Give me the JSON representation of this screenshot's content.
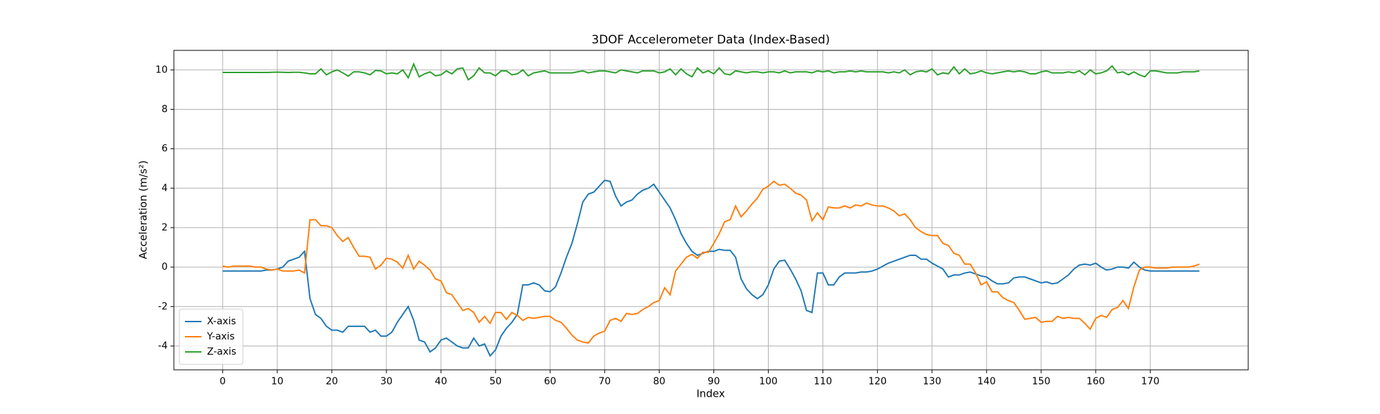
{
  "chart_data": {
    "type": "line",
    "title": "3DOF Accelerometer Data (Index-Based)",
    "x_label": "Index",
    "y_label": "Acceleration (m/s²)",
    "xlim": [
      -8.95,
      187.95
    ],
    "ylim": [
      -5.21,
      10.99
    ],
    "xticks": [
      0,
      10,
      20,
      30,
      40,
      50,
      60,
      70,
      80,
      90,
      100,
      110,
      120,
      130,
      140,
      150,
      160,
      170
    ],
    "yticks": [
      -4,
      -2,
      0,
      2,
      4,
      6,
      8,
      10
    ],
    "grid": true,
    "legend": "lower left",
    "x": [
      0,
      1,
      2,
      3,
      4,
      5,
      6,
      7,
      8,
      9,
      10,
      11,
      12,
      13,
      14,
      15,
      16,
      17,
      18,
      19,
      20,
      21,
      22,
      23,
      24,
      25,
      26,
      27,
      28,
      29,
      30,
      31,
      32,
      33,
      34,
      35,
      36,
      37,
      38,
      39,
      40,
      41,
      42,
      43,
      44,
      45,
      46,
      47,
      48,
      49,
      50,
      51,
      52,
      53,
      54,
      55,
      56,
      57,
      58,
      59,
      60,
      61,
      62,
      63,
      64,
      65,
      66,
      67,
      68,
      69,
      70,
      71,
      72,
      73,
      74,
      75,
      76,
      77,
      78,
      79,
      80,
      81,
      82,
      83,
      84,
      85,
      86,
      87,
      88,
      89,
      90,
      91,
      92,
      93,
      94,
      95,
      96,
      97,
      98,
      99,
      100,
      101,
      102,
      103,
      104,
      105,
      106,
      107,
      108,
      109,
      110,
      111,
      112,
      113,
      114,
      115,
      116,
      117,
      118,
      119,
      120,
      121,
      122,
      123,
      124,
      125,
      126,
      127,
      128,
      129,
      130,
      131,
      132,
      133,
      134,
      135,
      136,
      137,
      138,
      139,
      140,
      141,
      142,
      143,
      144,
      145,
      146,
      147,
      148,
      149,
      150,
      151,
      152,
      153,
      154,
      155,
      156,
      157,
      158,
      159,
      160,
      161,
      162,
      163,
      164,
      165,
      166,
      167,
      168,
      169,
      170,
      171,
      172,
      173,
      174,
      175,
      176,
      177,
      178,
      179
    ],
    "series": [
      {
        "name": "X-axis",
        "color": "#1f77b4",
        "values": [
          -0.2,
          -0.2,
          -0.2,
          -0.2,
          -0.2,
          -0.2,
          -0.2,
          -0.2,
          -0.15,
          -0.15,
          -0.1,
          0,
          0.3,
          0.4,
          0.5,
          0.8,
          -1.6,
          -2.4,
          -2.6,
          -3.0,
          -3.2,
          -3.2,
          -3.3,
          -3.0,
          -3.0,
          -3.0,
          -3.0,
          -3.3,
          -3.2,
          -3.5,
          -3.5,
          -3.3,
          -2.8,
          -2.4,
          -2.0,
          -2.7,
          -3.7,
          -3.8,
          -4.3,
          -4.1,
          -3.7,
          -3.6,
          -3.8,
          -4.0,
          -4.1,
          -4.1,
          -3.6,
          -4.0,
          -3.9,
          -4.5,
          -4.2,
          -3.5,
          -3.1,
          -2.8,
          -2.4,
          -0.9,
          -0.9,
          -0.8,
          -0.9,
          -1.2,
          -1.25,
          -1.0,
          -0.3,
          0.5,
          1.2,
          2.2,
          3.3,
          3.7,
          3.8,
          4.1,
          4.4,
          4.35,
          3.6,
          3.1,
          3.3,
          3.4,
          3.7,
          3.9,
          4.0,
          4.2,
          3.8,
          3.4,
          3.0,
          2.4,
          1.7,
          1.2,
          0.8,
          0.6,
          0.7,
          0.8,
          0.8,
          0.9,
          0.85,
          0.85,
          0.5,
          -0.6,
          -1.1,
          -1.4,
          -1.6,
          -1.4,
          -0.9,
          -0.1,
          0.3,
          0.35,
          -0.1,
          -0.6,
          -1.2,
          -2.2,
          -2.3,
          -0.3,
          -0.3,
          -0.9,
          -0.9,
          -0.5,
          -0.3,
          -0.3,
          -0.3,
          -0.25,
          -0.25,
          -0.2,
          -0.1,
          0.05,
          0.2,
          0.3,
          0.4,
          0.5,
          0.6,
          0.6,
          0.4,
          0.4,
          0.2,
          0.05,
          -0.1,
          -0.5,
          -0.4,
          -0.4,
          -0.3,
          -0.25,
          -0.35,
          -0.45,
          -0.5,
          -0.7,
          -0.85,
          -0.85,
          -0.8,
          -0.55,
          -0.5,
          -0.5,
          -0.6,
          -0.7,
          -0.8,
          -0.75,
          -0.85,
          -0.8,
          -0.6,
          -0.4,
          -0.1,
          0.1,
          0.15,
          0.1,
          0.2,
          0.0,
          -0.15,
          -0.1,
          0.0,
          0.0,
          -0.05,
          0.25,
          0.0,
          -0.15,
          -0.2,
          -0.2,
          -0.2,
          -0.2,
          -0.2,
          -0.2,
          -0.2,
          -0.2,
          -0.2,
          -0.2
        ]
      },
      {
        "name": "Y-axis",
        "color": "#ff7f0e",
        "values": [
          0.05,
          0.0,
          0.05,
          0.05,
          0.05,
          0.05,
          0.0,
          0.0,
          -0.1,
          -0.15,
          -0.1,
          -0.2,
          -0.2,
          -0.2,
          -0.15,
          -0.3,
          2.4,
          2.4,
          2.1,
          2.1,
          2.0,
          1.6,
          1.3,
          1.5,
          1.0,
          0.55,
          0.55,
          0.5,
          -0.1,
          0.1,
          0.45,
          0.4,
          0.25,
          -0.05,
          0.6,
          -0.1,
          0.3,
          0.1,
          -0.15,
          -0.6,
          -0.7,
          -1.3,
          -1.4,
          -1.8,
          -2.2,
          -2.1,
          -2.3,
          -2.8,
          -2.5,
          -2.85,
          -2.3,
          -2.3,
          -2.65,
          -2.3,
          -2.45,
          -2.7,
          -2.55,
          -2.6,
          -2.55,
          -2.5,
          -2.5,
          -2.7,
          -2.8,
          -3.1,
          -3.45,
          -3.7,
          -3.8,
          -3.85,
          -3.5,
          -3.35,
          -3.25,
          -2.7,
          -2.6,
          -2.75,
          -2.35,
          -2.4,
          -2.35,
          -2.15,
          -2.0,
          -1.8,
          -1.7,
          -1.05,
          -1.4,
          -0.2,
          0.15,
          0.5,
          0.65,
          0.45,
          0.75,
          0.75,
          1.2,
          1.7,
          2.3,
          2.4,
          3.1,
          2.55,
          2.85,
          3.2,
          3.5,
          3.95,
          4.1,
          4.35,
          4.15,
          4.2,
          4.0,
          3.75,
          3.65,
          3.4,
          2.35,
          2.75,
          2.4,
          3.05,
          3.0,
          3.0,
          3.1,
          3.0,
          3.15,
          3.1,
          3.25,
          3.15,
          3.1,
          3.1,
          3.0,
          2.85,
          2.6,
          2.7,
          2.4,
          2.0,
          1.8,
          1.65,
          1.6,
          1.6,
          1.2,
          1.1,
          0.7,
          0.6,
          0.15,
          0.15,
          -0.3,
          -0.9,
          -0.75,
          -1.25,
          -1.25,
          -1.55,
          -1.7,
          -1.8,
          -2.2,
          -2.65,
          -2.6,
          -2.55,
          -2.8,
          -2.75,
          -2.75,
          -2.5,
          -2.6,
          -2.55,
          -2.6,
          -2.6,
          -2.85,
          -3.15,
          -2.6,
          -2.45,
          -2.55,
          -2.15,
          -2.05,
          -1.7,
          -2.1,
          -1.0,
          -0.15,
          0.0,
          0.0,
          -0.05,
          -0.05,
          -0.05,
          0.0,
          0.0,
          0.0,
          0.0,
          0.05,
          0.15
        ]
      },
      {
        "name": "Z-axis",
        "color": "#2ca02c",
        "values": [
          9.87,
          9.87,
          9.87,
          9.87,
          9.87,
          9.87,
          9.87,
          9.87,
          9.87,
          9.88,
          9.89,
          9.88,
          9.87,
          9.88,
          9.88,
          9.85,
          9.8,
          9.8,
          10.05,
          9.75,
          9.9,
          10.0,
          9.85,
          9.68,
          9.9,
          9.9,
          9.85,
          9.75,
          9.97,
          9.95,
          9.8,
          9.85,
          9.8,
          10.0,
          9.6,
          10.3,
          9.65,
          9.8,
          9.9,
          9.7,
          9.75,
          9.95,
          9.8,
          10.05,
          10.1,
          9.5,
          9.7,
          10.1,
          9.85,
          9.85,
          9.7,
          9.95,
          9.95,
          9.75,
          9.8,
          10.0,
          9.7,
          9.85,
          9.9,
          9.95,
          9.85,
          9.85,
          9.85,
          9.85,
          9.85,
          9.9,
          9.95,
          9.85,
          9.9,
          9.95,
          9.95,
          9.9,
          9.85,
          10.0,
          9.95,
          9.9,
          9.85,
          9.95,
          9.95,
          9.95,
          9.85,
          9.9,
          10.05,
          9.75,
          10.05,
          9.8,
          9.65,
          10.1,
          9.85,
          9.95,
          9.8,
          10.1,
          9.8,
          9.75,
          9.95,
          9.9,
          9.85,
          9.9,
          9.9,
          9.85,
          9.9,
          9.9,
          9.85,
          9.95,
          9.85,
          9.9,
          9.9,
          9.9,
          9.85,
          9.95,
          9.9,
          9.95,
          9.85,
          9.9,
          9.9,
          9.95,
          9.9,
          9.95,
          9.9,
          9.9,
          9.9,
          9.9,
          9.85,
          9.9,
          9.85,
          10.0,
          9.75,
          9.9,
          9.95,
          9.9,
          10.05,
          9.75,
          9.85,
          9.8,
          10.15,
          9.8,
          10.05,
          9.8,
          9.85,
          9.95,
          9.85,
          9.8,
          9.85,
          9.9,
          9.95,
          9.9,
          9.95,
          9.9,
          9.8,
          9.8,
          9.9,
          9.95,
          9.85,
          9.85,
          9.85,
          9.9,
          9.85,
          9.95,
          9.75,
          10.0,
          9.8,
          9.85,
          9.95,
          10.2,
          9.85,
          9.9,
          9.75,
          9.9,
          9.75,
          9.65,
          9.95,
          9.95,
          9.9,
          9.85,
          9.85,
          9.85,
          9.9,
          9.9,
          9.9,
          9.95
        ]
      }
    ]
  }
}
